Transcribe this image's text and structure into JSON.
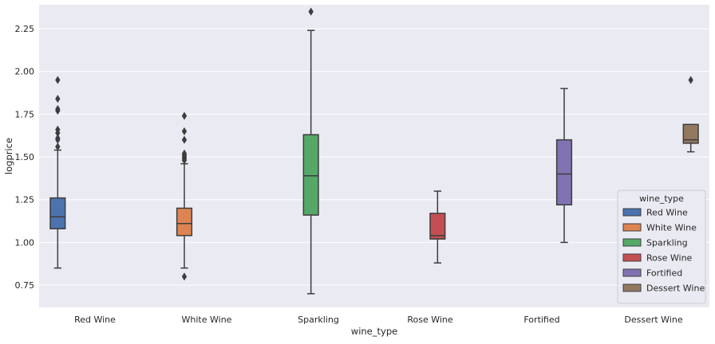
{
  "chart_data": {
    "type": "box",
    "title": "",
    "xlabel": "wine_type",
    "ylabel": "logprice",
    "ylim": [
      0.62,
      2.39
    ],
    "yticks": [
      "0.75",
      "1.00",
      "1.25",
      "1.50",
      "1.75",
      "2.00",
      "2.25"
    ],
    "ytick_values": [
      0.75,
      1.0,
      1.25,
      1.5,
      1.75,
      2.0,
      2.25
    ],
    "grid": true,
    "legend": {
      "title": "wine_type",
      "placement": "lower-right",
      "entries": [
        "Red Wine",
        "White Wine",
        "Sparkling",
        "Rose Wine",
        "Fortified",
        "Dessert Wine"
      ]
    },
    "categories": [
      "Red Wine",
      "White Wine",
      "Sparkling",
      "Rose Wine",
      "Fortified",
      "Dessert Wine"
    ],
    "series": [
      {
        "category": "Red Wine",
        "color": "#4c72b0",
        "whisker_low": 0.85,
        "q1": 1.08,
        "median": 1.15,
        "q3": 1.26,
        "whisker_high": 1.54,
        "outliers": [
          1.56,
          1.6,
          1.61,
          1.64,
          1.66,
          1.77,
          1.78,
          1.84,
          1.95
        ]
      },
      {
        "category": "White Wine",
        "color": "#dd8452",
        "whisker_low": 0.85,
        "q1": 1.04,
        "median": 1.11,
        "q3": 1.2,
        "whisker_high": 1.46,
        "outliers": [
          0.8,
          1.48,
          1.49,
          1.5,
          1.51,
          1.52,
          1.6,
          1.65,
          1.74
        ]
      },
      {
        "category": "Sparkling",
        "color": "#55a868",
        "whisker_low": 0.7,
        "q1": 1.16,
        "median": 1.39,
        "q3": 1.63,
        "whisker_high": 2.24,
        "outliers": [
          2.35
        ]
      },
      {
        "category": "Rose Wine",
        "color": "#c44e52",
        "whisker_low": 0.88,
        "q1": 1.02,
        "median": 1.04,
        "q3": 1.17,
        "whisker_high": 1.3,
        "outliers": []
      },
      {
        "category": "Fortified",
        "color": "#8172b3",
        "whisker_low": 1.0,
        "q1": 1.22,
        "median": 1.4,
        "q3": 1.6,
        "whisker_high": 1.9,
        "outliers": []
      },
      {
        "category": "Dessert Wine",
        "color": "#937860",
        "whisker_low": 1.53,
        "q1": 1.58,
        "median": 1.6,
        "q3": 1.69,
        "whisker_high": 1.69,
        "outliers": [
          1.95
        ]
      }
    ]
  },
  "style": {
    "plot_background": "#eaeaf2",
    "grid_color": "#ffffff",
    "line_color": "#3d3d3d"
  }
}
